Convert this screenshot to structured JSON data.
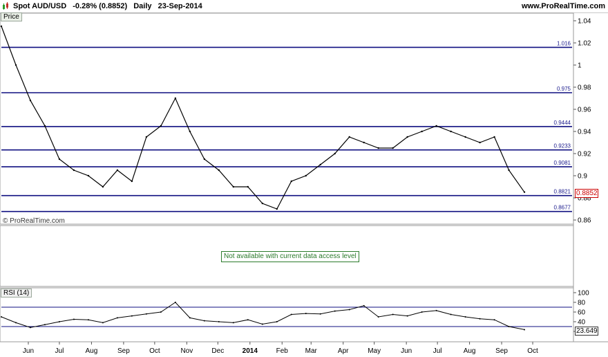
{
  "header": {
    "instrument": "Spot AUD/USD",
    "change": "-0.28% (0.8852)",
    "period": "Daily",
    "date": "23-Sep-2014",
    "site": "www.ProRealTime.com"
  },
  "panels": {
    "price_label": "Price",
    "copyright": "© ProRealTime.com",
    "unavailable_message": "Not available with current data access level",
    "rsi_label": "RSI (14)"
  },
  "chart_data": [
    {
      "type": "line",
      "title": "Spot AUD/USD",
      "ylim": [
        0.86,
        1.04
      ],
      "y_ticks": [
        "0.86",
        "0.88",
        "0.9",
        "0.92",
        "0.94",
        "0.96",
        "0.98",
        "1",
        "1.02",
        "1.04"
      ],
      "x_ticks": [
        "Jun",
        "Jul",
        "Aug",
        "Sep",
        "Oct",
        "Nov",
        "Dec",
        "2014",
        "Feb",
        "Mar",
        "Apr",
        "May",
        "Jun",
        "Jul",
        "Aug",
        "Sep",
        "Oct"
      ],
      "horizontal_levels": [
        "1.016",
        "0.975",
        "0.9444",
        "0.9233",
        "0.9081",
        "0.8821",
        "0.8677"
      ],
      "last_value": "0.8852",
      "series": [
        {
          "color": "#000000",
          "x": [
            "2013-05-06",
            "2013-05-20",
            "2013-06-03",
            "2013-06-17",
            "2013-07-01",
            "2013-07-15",
            "2013-07-29",
            "2013-08-12",
            "2013-08-26",
            "2013-09-09",
            "2013-09-23",
            "2013-10-07",
            "2013-10-21",
            "2013-11-04",
            "2013-11-18",
            "2013-12-02",
            "2013-12-16",
            "2013-12-30",
            "2014-01-13",
            "2014-01-27",
            "2014-02-10",
            "2014-02-24",
            "2014-03-10",
            "2014-03-24",
            "2014-04-07",
            "2014-04-21",
            "2014-05-05",
            "2014-05-19",
            "2014-06-02",
            "2014-06-16",
            "2014-06-30",
            "2014-07-14",
            "2014-07-28",
            "2014-08-11",
            "2014-08-25",
            "2014-09-08",
            "2014-09-23"
          ],
          "values": [
            1.035,
            1.0,
            0.968,
            0.945,
            0.915,
            0.905,
            0.9,
            0.89,
            0.905,
            0.895,
            0.935,
            0.945,
            0.97,
            0.94,
            0.915,
            0.905,
            0.89,
            0.89,
            0.875,
            0.87,
            0.895,
            0.9,
            0.91,
            0.92,
            0.935,
            0.93,
            0.925,
            0.925,
            0.935,
            0.94,
            0.945,
            0.94,
            0.935,
            0.93,
            0.935,
            0.905,
            0.8852
          ]
        }
      ]
    },
    {
      "type": "line",
      "title": "RSI (14)",
      "ylim": [
        0,
        100
      ],
      "y_ticks": [
        "20",
        "40",
        "60",
        "80",
        "100"
      ],
      "horizontal_levels": [
        30,
        70
      ],
      "last_value": "23.649",
      "series": [
        {
          "color": "#000000",
          "x": [
            "2013-05-06",
            "2013-05-20",
            "2013-06-03",
            "2013-06-17",
            "2013-07-01",
            "2013-07-15",
            "2013-07-29",
            "2013-08-12",
            "2013-08-26",
            "2013-09-09",
            "2013-09-23",
            "2013-10-07",
            "2013-10-21",
            "2013-11-04",
            "2013-11-18",
            "2013-12-02",
            "2013-12-16",
            "2013-12-30",
            "2014-01-13",
            "2014-01-27",
            "2014-02-10",
            "2014-02-24",
            "2014-03-10",
            "2014-03-24",
            "2014-04-07",
            "2014-04-21",
            "2014-05-05",
            "2014-05-19",
            "2014-06-02",
            "2014-06-16",
            "2014-06-30",
            "2014-07-14",
            "2014-07-28",
            "2014-08-11",
            "2014-08-25",
            "2014-09-08",
            "2014-09-23"
          ],
          "values": [
            50,
            38,
            28,
            34,
            40,
            45,
            44,
            38,
            48,
            52,
            56,
            60,
            80,
            48,
            42,
            40,
            38,
            44,
            35,
            40,
            55,
            57,
            56,
            62,
            65,
            73,
            50,
            55,
            52,
            60,
            63,
            55,
            50,
            46,
            44,
            30,
            23.649
          ]
        }
      ]
    }
  ]
}
